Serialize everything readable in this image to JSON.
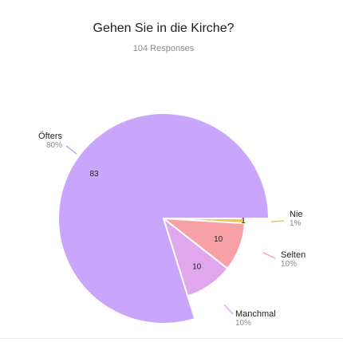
{
  "chart_data": {
    "type": "pie",
    "title": "Gehen Sie in die Kirche?",
    "subtitle": "104 Responses",
    "slices": [
      {
        "label": "Öfters",
        "value": 83,
        "percent": "80%",
        "color": "#c9a6fb"
      },
      {
        "label": "Nie",
        "value": 1,
        "percent": "1%",
        "color": "#f6c24a"
      },
      {
        "label": "Selten",
        "value": 10,
        "percent": "10%",
        "color": "#f7a1a6"
      },
      {
        "label": "Manchmal",
        "value": 10,
        "percent": "10%",
        "color": "#e0a7ec"
      }
    ],
    "legend": "none"
  }
}
